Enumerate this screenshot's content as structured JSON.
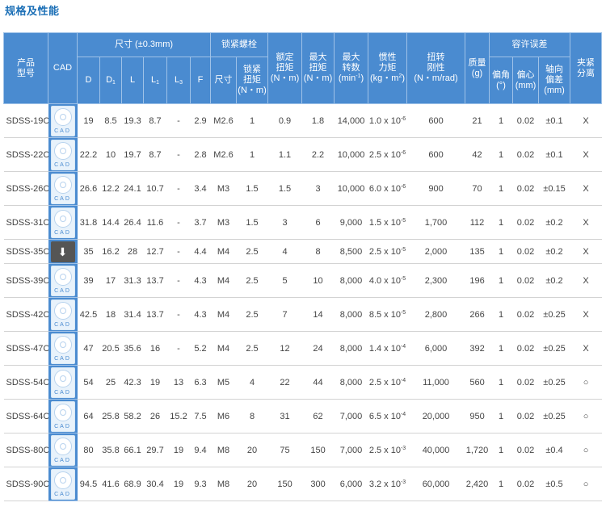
{
  "title": "规格及性能",
  "headers": {
    "model": "产品\n型号",
    "cad": "CAD",
    "dim_group": "尺寸 (±0.3mm)",
    "screw_group": "锁紧螺栓",
    "rated_torque": "额定\n扭矩\n(N・m)",
    "max_torque": "最大\n扭矩\n(N・m)",
    "max_speed": "最大\n转数",
    "max_speed_unit_base": "(min",
    "max_speed_unit_sup": "-1",
    "max_speed_unit_end": ")",
    "inertia": "惯性\n力矩",
    "inertia_unit_base": "(kg・m",
    "inertia_unit_sup": "2",
    "inertia_unit_end": ")",
    "stiffness": "扭转\n刚性\n(N・m/rad)",
    "mass": "质量\n(g)",
    "tolerance_group": "容许误差",
    "clamp": "夹紧\n分离",
    "dim_d": "D",
    "dim_d1": "D",
    "dim_d1_sub": "1",
    "dim_l": "L",
    "dim_l1": "L",
    "dim_l1_sub": "1",
    "dim_l3": "L",
    "dim_l3_sub": "3",
    "dim_f": "F",
    "screw_size": "尺寸",
    "screw_torque": "锁紧\n扭矩\n(N・m)",
    "tol_angle": "偏角\n(°)",
    "tol_center": "偏心\n(mm)",
    "tol_axial": "轴向\n偏差\n(mm)"
  },
  "cad_label": "CAD",
  "download_icon": "⬇",
  "rows": [
    {
      "model": "SDSS-19C",
      "cad": "cad",
      "d": "19",
      "d1": "8.5",
      "l": "19.3",
      "l1": "8.7",
      "l3": "-",
      "f": "2.9",
      "size": "M2.6",
      "torque": "1",
      "rated": "0.9",
      "max": "1.8",
      "speed": "14,000",
      "inertia_base": "1.0 x 10",
      "inertia_exp": "-6",
      "stiffness": "600",
      "mass": "21",
      "angle": "1",
      "center": "0.02",
      "axial": "±0.1",
      "clamp": "X"
    },
    {
      "model": "SDSS-22C",
      "cad": "cad",
      "d": "22.2",
      "d1": "10",
      "l": "19.7",
      "l1": "8.7",
      "l3": "-",
      "f": "2.8",
      "size": "M2.6",
      "torque": "1",
      "rated": "1.1",
      "max": "2.2",
      "speed": "10,000",
      "inertia_base": "2.5 x 10",
      "inertia_exp": "-6",
      "stiffness": "600",
      "mass": "42",
      "angle": "1",
      "center": "0.02",
      "axial": "±0.1",
      "clamp": "X"
    },
    {
      "model": "SDSS-26C",
      "cad": "cad",
      "d": "26.6",
      "d1": "12.2",
      "l": "24.1",
      "l1": "10.7",
      "l3": "-",
      "f": "3.4",
      "size": "M3",
      "torque": "1.5",
      "rated": "1.5",
      "max": "3",
      "speed": "10,000",
      "inertia_base": "6.0 x 10",
      "inertia_exp": "-6",
      "stiffness": "900",
      "mass": "70",
      "angle": "1",
      "center": "0.02",
      "axial": "±0.15",
      "clamp": "X"
    },
    {
      "model": "SDSS-31C",
      "cad": "cad",
      "d": "31.8",
      "d1": "14.4",
      "l": "26.4",
      "l1": "11.6",
      "l3": "-",
      "f": "3.7",
      "size": "M3",
      "torque": "1.5",
      "rated": "3",
      "max": "6",
      "speed": "9,000",
      "inertia_base": "1.5 x 10",
      "inertia_exp": "-5",
      "stiffness": "1,700",
      "mass": "112",
      "angle": "1",
      "center": "0.02",
      "axial": "±0.2",
      "clamp": "X"
    },
    {
      "model": "SDSS-35C",
      "cad": "download",
      "d": "35",
      "d1": "16.2",
      "l": "28",
      "l1": "12.7",
      "l3": "-",
      "f": "4.4",
      "size": "M4",
      "torque": "2.5",
      "rated": "4",
      "max": "8",
      "speed": "8,500",
      "inertia_base": "2.5 x 10",
      "inertia_exp": "-5",
      "stiffness": "2,000",
      "mass": "135",
      "angle": "1",
      "center": "0.02",
      "axial": "±0.2",
      "clamp": "X"
    },
    {
      "model": "SDSS-39C",
      "cad": "cad",
      "d": "39",
      "d1": "17",
      "l": "31.3",
      "l1": "13.7",
      "l3": "-",
      "f": "4.3",
      "size": "M4",
      "torque": "2.5",
      "rated": "5",
      "max": "10",
      "speed": "8,000",
      "inertia_base": "4.0 x 10",
      "inertia_exp": "-5",
      "stiffness": "2,300",
      "mass": "196",
      "angle": "1",
      "center": "0.02",
      "axial": "±0.2",
      "clamp": "X"
    },
    {
      "model": "SDSS-42C",
      "cad": "cad",
      "d": "42.5",
      "d1": "18",
      "l": "31.4",
      "l1": "13.7",
      "l3": "-",
      "f": "4.3",
      "size": "M4",
      "torque": "2.5",
      "rated": "7",
      "max": "14",
      "speed": "8,000",
      "inertia_base": "8.5 x 10",
      "inertia_exp": "-5",
      "stiffness": "2,800",
      "mass": "266",
      "angle": "1",
      "center": "0.02",
      "axial": "±0.25",
      "clamp": "X"
    },
    {
      "model": "SDSS-47C",
      "cad": "cad",
      "d": "47",
      "d1": "20.5",
      "l": "35.6",
      "l1": "16",
      "l3": "-",
      "f": "5.2",
      "size": "M4",
      "torque": "2.5",
      "rated": "12",
      "max": "24",
      "speed": "8,000",
      "inertia_base": "1.4 x 10",
      "inertia_exp": "-4",
      "stiffness": "6,000",
      "mass": "392",
      "angle": "1",
      "center": "0.02",
      "axial": "±0.25",
      "clamp": "X"
    },
    {
      "model": "SDSS-54C",
      "cad": "cad",
      "d": "54",
      "d1": "25",
      "l": "42.3",
      "l1": "19",
      "l3": "13",
      "f": "6.3",
      "size": "M5",
      "torque": "4",
      "rated": "22",
      "max": "44",
      "speed": "8,000",
      "inertia_base": "2.5 x 10",
      "inertia_exp": "-4",
      "stiffness": "11,000",
      "mass": "560",
      "angle": "1",
      "center": "0.02",
      "axial": "±0.25",
      "clamp": "○"
    },
    {
      "model": "SDSS-64C",
      "cad": "cad",
      "d": "64",
      "d1": "25.8",
      "l": "58.2",
      "l1": "26",
      "l3": "15.2",
      "f": "7.5",
      "size": "M6",
      "torque": "8",
      "rated": "31",
      "max": "62",
      "speed": "7,000",
      "inertia_base": "6.5 x 10",
      "inertia_exp": "-4",
      "stiffness": "20,000",
      "mass": "950",
      "angle": "1",
      "center": "0.02",
      "axial": "±0.25",
      "clamp": "○"
    },
    {
      "model": "SDSS-80C",
      "cad": "cad",
      "d": "80",
      "d1": "35.8",
      "l": "66.1",
      "l1": "29.7",
      "l3": "19",
      "f": "9.4",
      "size": "M8",
      "torque": "20",
      "rated": "75",
      "max": "150",
      "speed": "7,000",
      "inertia_base": "2.5 x 10",
      "inertia_exp": "-3",
      "stiffness": "40,000",
      "mass": "1,720",
      "angle": "1",
      "center": "0.02",
      "axial": "±0.4",
      "clamp": "○"
    },
    {
      "model": "SDSS-90C",
      "cad": "cad",
      "d": "94.5",
      "d1": "41.6",
      "l": "68.9",
      "l1": "30.4",
      "l3": "19",
      "f": "9.3",
      "size": "M8",
      "torque": "20",
      "rated": "150",
      "max": "300",
      "speed": "6,000",
      "inertia_base": "3.2 x 10",
      "inertia_exp": "-3",
      "stiffness": "60,000",
      "mass": "2,420",
      "angle": "1",
      "center": "0.02",
      "axial": "±0.5",
      "clamp": "○"
    }
  ]
}
